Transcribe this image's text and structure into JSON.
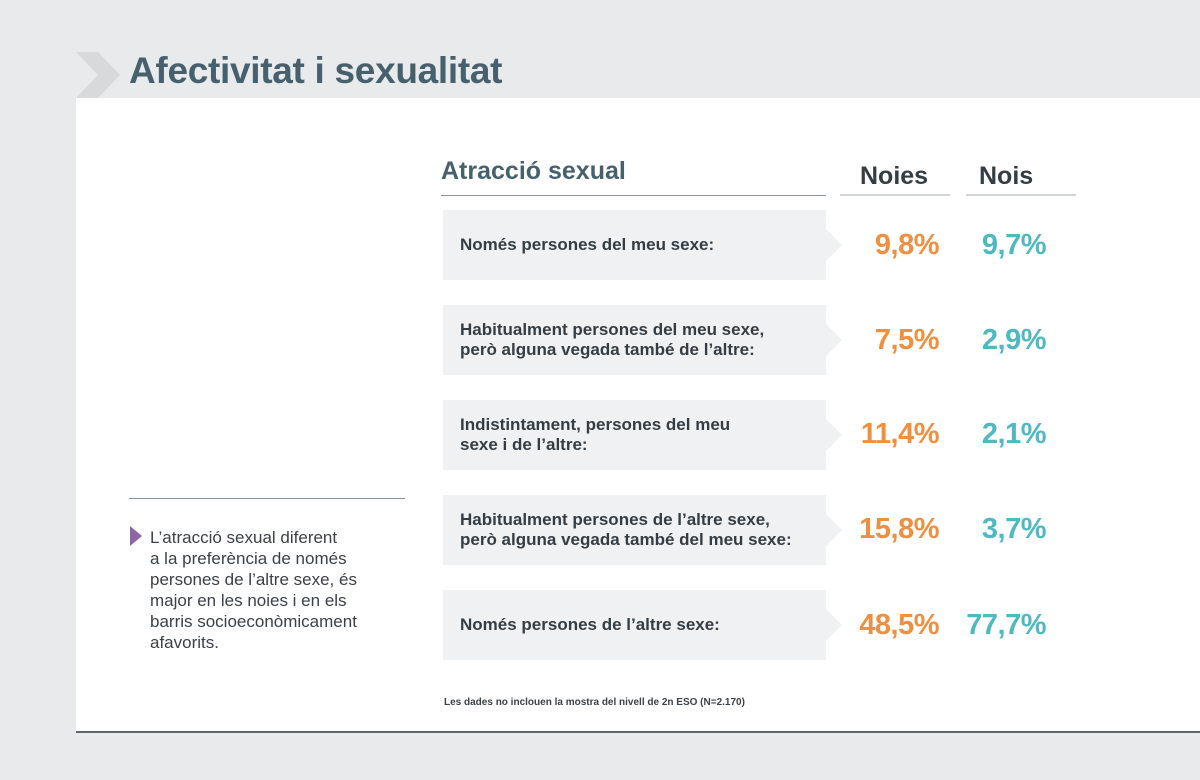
{
  "header": {
    "title": "Afectivitat i sexualitat"
  },
  "table": {
    "title": "Atracció sexual",
    "columns": [
      "Noies",
      "Nois"
    ],
    "rows": [
      {
        "label": "Només persones del meu sexe:",
        "noies": "9,8%",
        "nois": "9,7%"
      },
      {
        "label": "Habitualment persones del meu sexe,\nperò alguna vegada també de l’altre:",
        "noies": "7,5%",
        "nois": "2,9%"
      },
      {
        "label": "Indistintament, persones del meu\nsexe i de l’altre:",
        "noies": "11,4%",
        "nois": "2,1%"
      },
      {
        "label": "Habitualment persones de l’altre sexe,\nperò alguna vegada també del meu sexe:",
        "noies": "15,8%",
        "nois": "3,7%"
      },
      {
        "label": "Només persones de l’altre sexe:",
        "noies": "48,5%",
        "nois": "77,7%"
      }
    ],
    "footnote": "Les dades no inclouen la mostra del nivell de 2n ESO (N=2.170)"
  },
  "side_note": {
    "text": "L’atracció sexual diferent\na la preferència de només\npersones de l’altre sexe, és\nmajor en les noies i en els\nbarris socioeconòmicament\nafavorits."
  },
  "colors": {
    "title": "#46616d",
    "noies": "#ef8f3f",
    "nois": "#4db9c0",
    "row_bg": "#f0f1f2",
    "marker": "#8d64a8"
  },
  "icons": {
    "title_marker": "chevron-right-icon",
    "note_marker": "triangle-right-icon"
  }
}
